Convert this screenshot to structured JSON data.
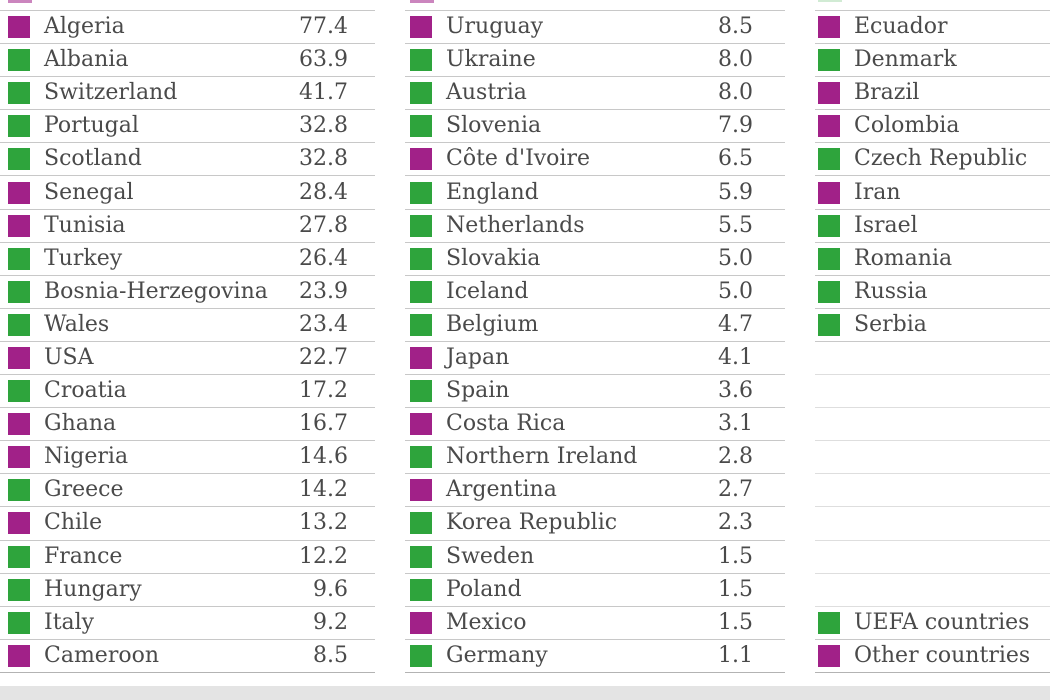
{
  "colors": {
    "uefa": "#2EA43C",
    "other": "#A12188",
    "text": "#4A4A4A",
    "separator": "#C8C8C8",
    "bottom_band": "#E4E4E4"
  },
  "legend": {
    "items": [
      {
        "label": "UEFA countries",
        "group": "uefa",
        "color": "#2EA43C"
      },
      {
        "label": "Other countries",
        "group": "other",
        "color": "#A12188"
      }
    ]
  },
  "chart_data": {
    "type": "table",
    "legend_entries": [
      "UEFA countries",
      "Other countries"
    ],
    "legend_colors": {
      "UEFA countries": "#2EA43C",
      "Other countries": "#A12188"
    },
    "columns": [
      {
        "rows": [
          {
            "type": "country",
            "country": "Algeria",
            "value": "77.4",
            "group": "other"
          },
          {
            "type": "country",
            "country": "Albania",
            "value": "63.9",
            "group": "uefa"
          },
          {
            "type": "country",
            "country": "Switzerland",
            "value": "41.7",
            "group": "uefa"
          },
          {
            "type": "country",
            "country": "Portugal",
            "value": "32.8",
            "group": "uefa"
          },
          {
            "type": "country",
            "country": "Scotland",
            "value": "32.8",
            "group": "uefa"
          },
          {
            "type": "country",
            "country": "Senegal",
            "value": "28.4",
            "group": "other"
          },
          {
            "type": "country",
            "country": "Tunisia",
            "value": "27.8",
            "group": "other"
          },
          {
            "type": "country",
            "country": "Turkey",
            "value": "26.4",
            "group": "uefa"
          },
          {
            "type": "country",
            "country": "Bosnia-Herzegovina",
            "value": "23.9",
            "group": "uefa"
          },
          {
            "type": "country",
            "country": "Wales",
            "value": "23.4",
            "group": "uefa"
          },
          {
            "type": "country",
            "country": "USA",
            "value": "22.7",
            "group": "other"
          },
          {
            "type": "country",
            "country": "Croatia",
            "value": "17.2",
            "group": "uefa"
          },
          {
            "type": "country",
            "country": "Ghana",
            "value": "16.7",
            "group": "other"
          },
          {
            "type": "country",
            "country": "Nigeria",
            "value": "14.6",
            "group": "other"
          },
          {
            "type": "country",
            "country": "Greece",
            "value": "14.2",
            "group": "uefa"
          },
          {
            "type": "country",
            "country": "Chile",
            "value": "13.2",
            "group": "other"
          },
          {
            "type": "country",
            "country": "France",
            "value": "12.2",
            "group": "uefa"
          },
          {
            "type": "country",
            "country": "Hungary",
            "value": "9.6",
            "group": "uefa"
          },
          {
            "type": "country",
            "country": "Italy",
            "value": "9.2",
            "group": "uefa"
          },
          {
            "type": "country",
            "country": "Cameroon",
            "value": "8.5",
            "group": "other"
          }
        ]
      },
      {
        "rows": [
          {
            "type": "country",
            "country": "Uruguay",
            "value": "8.5",
            "group": "other"
          },
          {
            "type": "country",
            "country": "Ukraine",
            "value": "8.0",
            "group": "uefa"
          },
          {
            "type": "country",
            "country": "Austria",
            "value": "8.0",
            "group": "uefa"
          },
          {
            "type": "country",
            "country": "Slovenia",
            "value": "7.9",
            "group": "uefa"
          },
          {
            "type": "country",
            "country": "Côte d'Ivoire",
            "value": "6.5",
            "group": "other"
          },
          {
            "type": "country",
            "country": "England",
            "value": "5.9",
            "group": "uefa"
          },
          {
            "type": "country",
            "country": "Netherlands",
            "value": "5.5",
            "group": "uefa"
          },
          {
            "type": "country",
            "country": "Slovakia",
            "value": "5.0",
            "group": "uefa"
          },
          {
            "type": "country",
            "country": "Iceland",
            "value": "5.0",
            "group": "uefa"
          },
          {
            "type": "country",
            "country": "Belgium",
            "value": "4.7",
            "group": "uefa"
          },
          {
            "type": "country",
            "country": "Japan",
            "value": "4.1",
            "group": "other"
          },
          {
            "type": "country",
            "country": "Spain",
            "value": "3.6",
            "group": "uefa"
          },
          {
            "type": "country",
            "country": "Costa Rica",
            "value": "3.1",
            "group": "other"
          },
          {
            "type": "country",
            "country": "Northern Ireland",
            "value": "2.8",
            "group": "uefa"
          },
          {
            "type": "country",
            "country": "Argentina",
            "value": "2.7",
            "group": "other"
          },
          {
            "type": "country",
            "country": "Korea Republic",
            "value": "2.3",
            "group": "uefa"
          },
          {
            "type": "country",
            "country": "Sweden",
            "value": "1.5",
            "group": "uefa"
          },
          {
            "type": "country",
            "country": "Poland",
            "value": "1.5",
            "group": "uefa"
          },
          {
            "type": "country",
            "country": "Mexico",
            "value": "1.5",
            "group": "other"
          },
          {
            "type": "country",
            "country": "Germany",
            "value": "1.1",
            "group": "uefa"
          }
        ]
      },
      {
        "rows": [
          {
            "type": "country",
            "country": "Ecuador",
            "value": null,
            "group": "other"
          },
          {
            "type": "country",
            "country": "Denmark",
            "value": null,
            "group": "uefa"
          },
          {
            "type": "country",
            "country": "Brazil",
            "value": null,
            "group": "other"
          },
          {
            "type": "country",
            "country": "Colombia",
            "value": null,
            "group": "other"
          },
          {
            "type": "country",
            "country": "Czech Republic",
            "value": null,
            "group": "uefa"
          },
          {
            "type": "country",
            "country": "Iran",
            "value": null,
            "group": "other"
          },
          {
            "type": "country",
            "country": "Israel",
            "value": null,
            "group": "uefa"
          },
          {
            "type": "country",
            "country": "Romania",
            "value": null,
            "group": "uefa"
          },
          {
            "type": "country",
            "country": "Russia",
            "value": null,
            "group": "uefa"
          },
          {
            "type": "country",
            "country": "Serbia",
            "value": null,
            "group": "uefa"
          },
          {
            "type": "empty"
          },
          {
            "type": "empty"
          },
          {
            "type": "empty"
          },
          {
            "type": "empty"
          },
          {
            "type": "empty"
          },
          {
            "type": "empty"
          },
          {
            "type": "empty"
          },
          {
            "type": "empty"
          },
          {
            "type": "legend",
            "label": "UEFA countries",
            "group": "uefa"
          },
          {
            "type": "legend",
            "label": "Other countries",
            "group": "other"
          }
        ]
      }
    ]
  }
}
